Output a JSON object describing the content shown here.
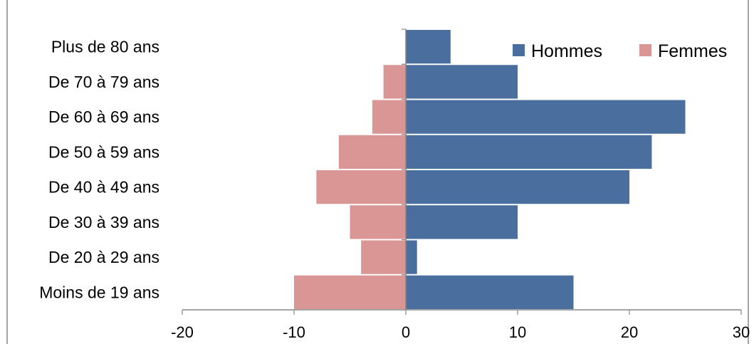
{
  "chart_data": {
    "type": "bar",
    "orientation": "horizontal",
    "title": "",
    "categories": [
      "Moins de 19 ans",
      "De 20 à 29 ans",
      "De 30 à 39 ans",
      "De 40 à 49 ans",
      "De 50 à 59 ans",
      "De 60 à 69 ans",
      "De 70 à 79 ans",
      "Plus de 80 ans"
    ],
    "series": [
      {
        "name": "Hommes",
        "color": "#4A6F9E",
        "values": [
          15,
          1,
          10,
          20,
          22,
          25,
          10,
          4
        ]
      },
      {
        "name": "Femmes",
        "color": "#D99694",
        "values": [
          -10,
          -4,
          -5,
          -8,
          -6,
          -3,
          -2,
          0
        ]
      }
    ],
    "xlim": [
      -20,
      30
    ],
    "xticks": [
      -20,
      -10,
      0,
      10,
      20,
      30
    ],
    "xtick_labels": [
      "-20",
      "-10",
      "0",
      "10",
      "20",
      "30"
    ],
    "xlabel": "",
    "ylabel": "",
    "grid": false,
    "legend": "top-right",
    "axis_color": "#868686"
  }
}
